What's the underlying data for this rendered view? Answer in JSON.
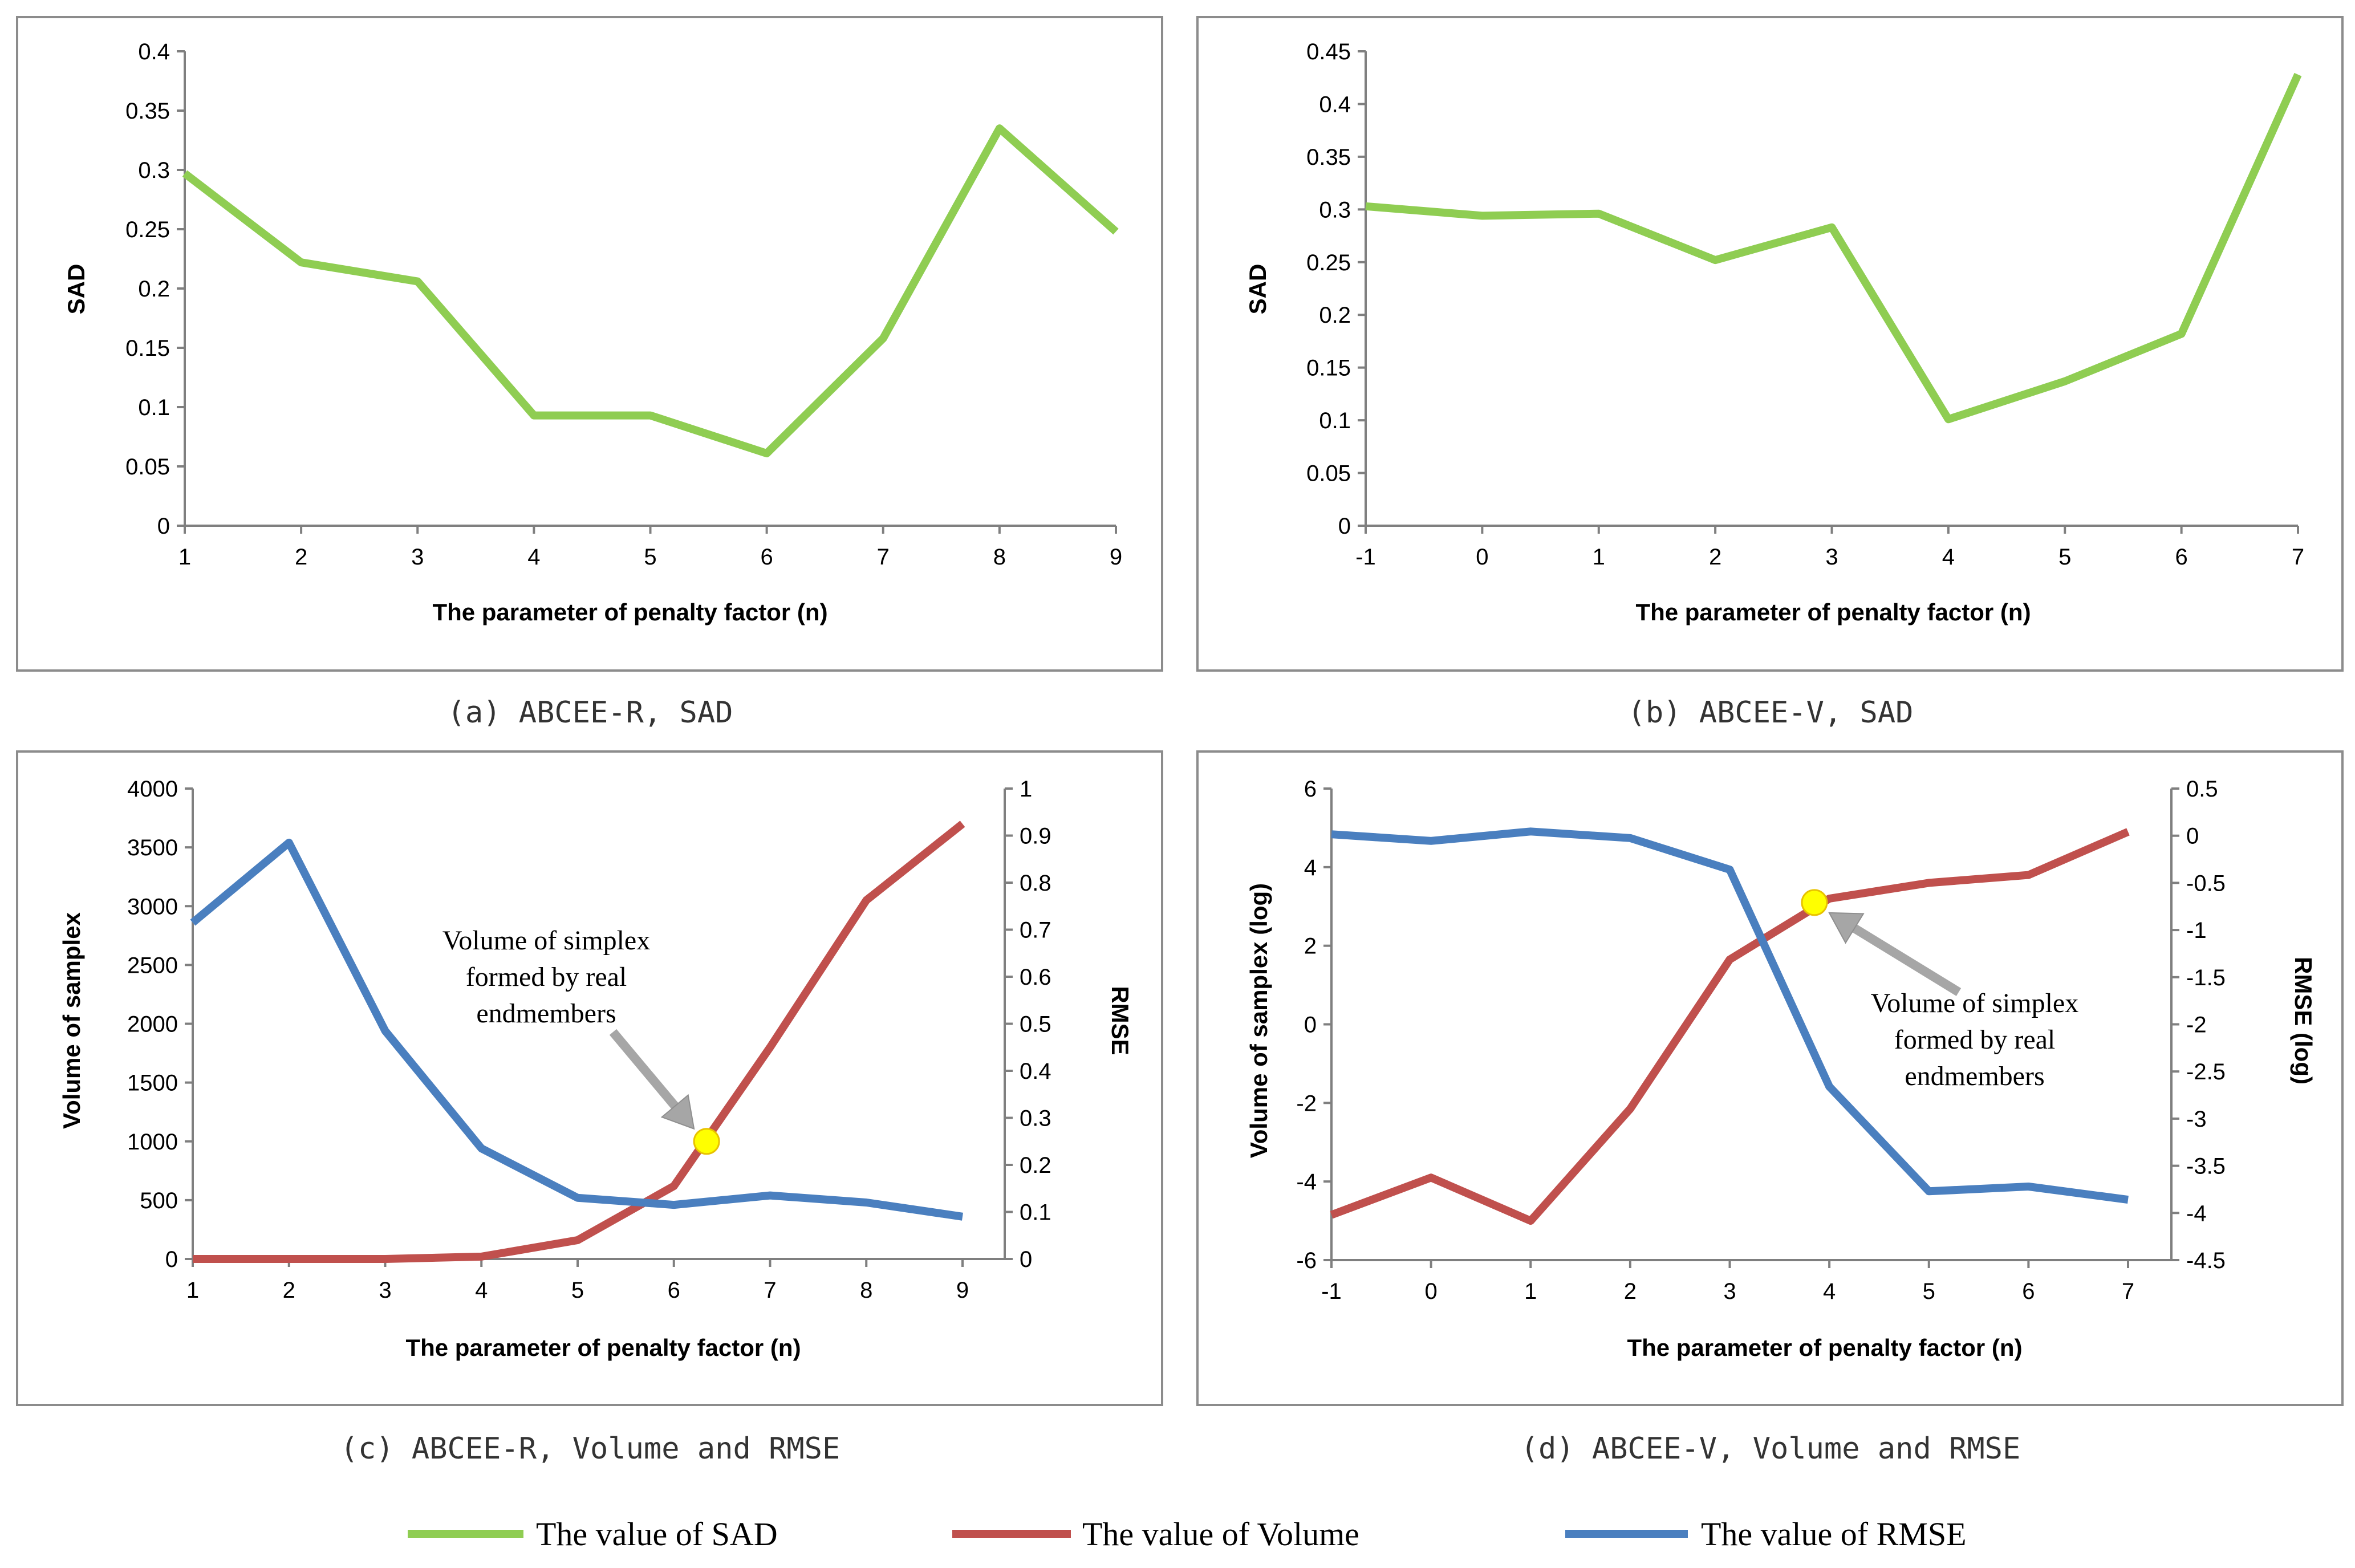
{
  "colors": {
    "sad": "#8fcd52",
    "volume": "#c0504d",
    "rmse": "#4a7fbf",
    "marker_fill": "#ffff00",
    "marker_stroke": "#e8c200",
    "arrow": "#a6a6a6"
  },
  "chart_data": [
    {
      "id": "a",
      "type": "line",
      "caption": "(a) ABCEE-R, SAD",
      "xlabel": "The parameter of penalty factor (n)",
      "ylabel": "SAD",
      "x": [
        1,
        2,
        3,
        4,
        5,
        6,
        7,
        8,
        9
      ],
      "xticks": [
        "1",
        "2",
        "3",
        "4",
        "5",
        "6",
        "7",
        "8",
        "9"
      ],
      "yticks": [
        "0",
        "0.05",
        "0.1",
        "0.15",
        "0.2",
        "0.25",
        "0.3",
        "0.35",
        "0.4"
      ],
      "ylim": [
        0,
        0.4
      ],
      "series": [
        {
          "name": "The value of SAD",
          "values": [
            0.297,
            0.222,
            0.206,
            0.093,
            0.093,
            0.061,
            0.158,
            0.335,
            0.248
          ]
        }
      ]
    },
    {
      "id": "b",
      "type": "line",
      "caption": "(b) ABCEE-V, SAD",
      "xlabel": "The parameter of penalty factor (n)",
      "ylabel": "SAD",
      "x": [
        -1,
        0,
        1,
        2,
        3,
        4,
        5,
        6,
        7
      ],
      "xticks": [
        "-1",
        "0",
        "1",
        "2",
        "3",
        "4",
        "5",
        "6",
        "7"
      ],
      "yticks": [
        "0",
        "0.05",
        "0.1",
        "0.15",
        "0.2",
        "0.25",
        "0.3",
        "0.35",
        "0.4",
        "0.45"
      ],
      "ylim": [
        0,
        0.45
      ],
      "series": [
        {
          "name": "The value of SAD",
          "values": [
            0.303,
            0.294,
            0.296,
            0.252,
            0.283,
            0.101,
            0.137,
            0.182,
            0.428
          ]
        }
      ]
    },
    {
      "id": "c",
      "type": "line",
      "caption": "(c) ABCEE-R, Volume and RMSE",
      "xlabel": "The parameter of penalty factor (n)",
      "ylabel": "Volume of samplex",
      "y2label": "RMSE",
      "x": [
        1,
        2,
        3,
        4,
        5,
        6,
        7,
        8,
        9
      ],
      "xticks": [
        "1",
        "2",
        "3",
        "4",
        "5",
        "6",
        "7",
        "8",
        "9"
      ],
      "yticks": [
        "0",
        "500",
        "1000",
        "1500",
        "2000",
        "2500",
        "3000",
        "3500",
        "4000"
      ],
      "y2ticks": [
        "0",
        "0.1",
        "0.2",
        "0.3",
        "0.4",
        "0.5",
        "0.6",
        "0.7",
        "0.8",
        "0.9",
        "1"
      ],
      "ylim": [
        0,
        4000
      ],
      "y2lim": [
        0,
        1
      ],
      "series": [
        {
          "name": "The value of Volume",
          "axis": "y",
          "values": [
            0,
            0,
            0,
            20,
            160,
            620,
            1800,
            3050,
            3700
          ]
        },
        {
          "name": "The value of RMSE",
          "axis": "y2",
          "values": [
            0.715,
            0.885,
            0.485,
            0.235,
            0.13,
            0.115,
            0.135,
            0.12,
            0.09
          ]
        }
      ],
      "annotation": {
        "lines": [
          "Volume of simplex",
          "formed by real",
          "endmembers"
        ],
        "marker_x": 6.34,
        "marker_y": 1000
      }
    },
    {
      "id": "d",
      "type": "line",
      "caption": "(d) ABCEE-V, Volume and RMSE",
      "xlabel": "The parameter of penalty factor (n)",
      "ylabel": "Volume of samplex (log)",
      "y2label": "RMSE (log)",
      "x": [
        -1,
        0,
        1,
        2,
        3,
        4,
        5,
        6,
        7
      ],
      "xticks": [
        "-1",
        "0",
        "1",
        "2",
        "3",
        "4",
        "5",
        "6",
        "7"
      ],
      "yticks": [
        "-6",
        "-4",
        "-2",
        "0",
        "2",
        "4",
        "6"
      ],
      "y2ticks": [
        "-4.5",
        "-4",
        "-3.5",
        "-3",
        "-2.5",
        "-2",
        "-1.5",
        "-1",
        "-0.5",
        "0",
        "0.5"
      ],
      "ylim": [
        -6,
        6
      ],
      "y2lim": [
        -4.5,
        0.5
      ],
      "series": [
        {
          "name": "The value of Volume",
          "axis": "y",
          "values": [
            -4.85,
            -3.9,
            -5.0,
            -2.15,
            1.65,
            3.2,
            3.6,
            3.8,
            4.9
          ]
        },
        {
          "name": "The value of RMSE",
          "axis": "y2",
          "values": [
            0.015,
            -0.055,
            0.045,
            -0.025,
            -0.36,
            -2.66,
            -3.77,
            -3.72,
            -3.86
          ]
        }
      ],
      "annotation": {
        "lines": [
          "Volume of simplex",
          "formed by real",
          "endmembers"
        ],
        "marker_x": 3.85,
        "marker_y": 3.1
      }
    }
  ],
  "legend": [
    {
      "label": "The value of SAD",
      "color": "#8fcd52"
    },
    {
      "label": "The value of Volume",
      "color": "#c0504d"
    },
    {
      "label": "The value of RMSE",
      "color": "#4a7fbf"
    }
  ]
}
